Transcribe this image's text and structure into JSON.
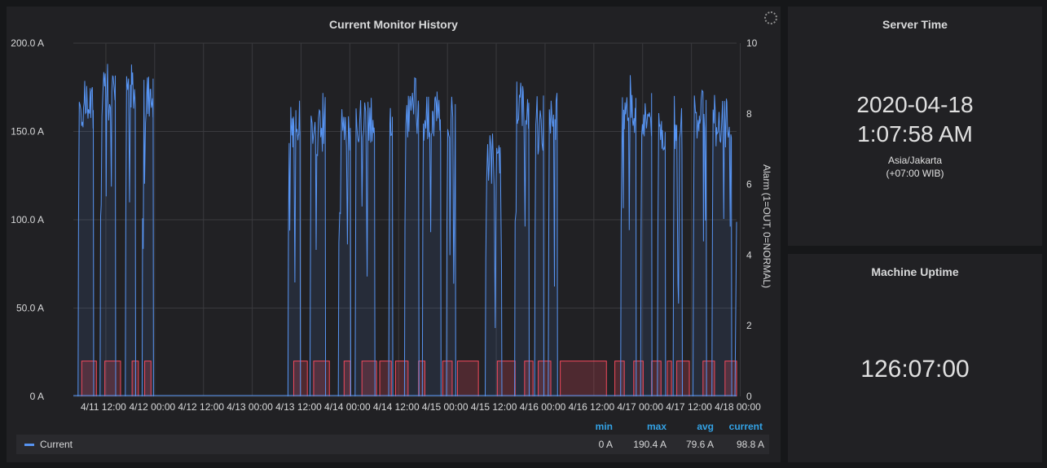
{
  "graph": {
    "title": "Current Monitor History",
    "legend": {
      "headers": {
        "min": "min",
        "max": "max",
        "avg": "avg",
        "current": "current"
      },
      "series_name": "Current",
      "min": "0 A",
      "max": "190.4 A",
      "avg": "79.6 A",
      "current": "98.8 A"
    }
  },
  "server_time": {
    "title": "Server Time",
    "date": "2020-04-18",
    "time": "1:07:58 AM",
    "timezone": "Asia/Jakarta",
    "offset": "(+07:00 WIB)"
  },
  "uptime": {
    "title": "Machine Uptime",
    "value": "126:07:00"
  },
  "colors": {
    "current": "#5794f2",
    "alarm": "#f2495c",
    "accent": "#33a2e5"
  },
  "chart_data": {
    "type": "line",
    "title": "Current Monitor History",
    "y_left": {
      "ticks": [
        "0 A",
        "50.0 A",
        "100.0 A",
        "150.0 A",
        "200.0 A"
      ],
      "range": [
        0,
        200
      ]
    },
    "y_right": {
      "label": "Alarm (1=OUT, 0=NORMAL)",
      "ticks": [
        "0",
        "2",
        "4",
        "6",
        "8",
        "10"
      ],
      "range": [
        0,
        10
      ]
    },
    "x_ticks": [
      "4/11 12:00",
      "4/12 00:00",
      "4/12 12:00",
      "4/13 00:00",
      "4/13 12:00",
      "4/14 00:00",
      "4/14 12:00",
      "4/15 00:00",
      "4/15 12:00",
      "4/16 00:00",
      "4/16 12:00",
      "4/17 00:00",
      "4/17 12:00",
      "4/18 00:00"
    ],
    "grid": true,
    "series": [
      {
        "name": "Current",
        "segments": [
          {
            "start": 0.5,
            "end": 1.9,
            "level": 165
          },
          {
            "start": 2.6,
            "end": 4.0,
            "level": 170
          },
          {
            "start": 5.0,
            "end": 5.9,
            "level": 172
          },
          {
            "start": 6.6,
            "end": 7.6,
            "level": 168
          },
          {
            "start": 20.5,
            "end": 21.6,
            "level": 155
          },
          {
            "start": 22.6,
            "end": 24.0,
            "level": 150
          },
          {
            "start": 25.3,
            "end": 26.4,
            "level": 145
          },
          {
            "start": 26.9,
            "end": 28.7,
            "level": 155
          },
          {
            "start": 30.1,
            "end": 30.4,
            "level": 150
          },
          {
            "start": 31.6,
            "end": 32.9,
            "level": 160
          },
          {
            "start": 33.3,
            "end": 35.0,
            "level": 158
          },
          {
            "start": 35.6,
            "end": 36.4,
            "level": 160
          },
          {
            "start": 39.3,
            "end": 40.8,
            "level": 130
          },
          {
            "start": 42.1,
            "end": 43.4,
            "level": 165
          },
          {
            "start": 44.0,
            "end": 44.8,
            "level": 150
          },
          {
            "start": 45.3,
            "end": 46.1,
            "level": 155
          },
          {
            "start": 52.2,
            "end": 53.6,
            "level": 160
          },
          {
            "start": 54.1,
            "end": 55.1,
            "level": 158
          },
          {
            "start": 55.7,
            "end": 56.4,
            "level": 150
          },
          {
            "start": 57.2,
            "end": 58.0,
            "level": 150
          },
          {
            "start": 59.1,
            "end": 60.3,
            "level": 160
          },
          {
            "start": 60.9,
            "end": 62.7,
            "level": 155
          }
        ],
        "last_value": 98.8
      },
      {
        "name": "Alarm",
        "axis": "right",
        "on_intervals": [
          [
            0.8,
            2.2
          ],
          [
            3.0,
            4.5
          ],
          [
            5.6,
            6.2
          ],
          [
            6.8,
            7.4
          ],
          [
            21.0,
            22.3
          ],
          [
            22.9,
            24.4
          ],
          [
            25.8,
            26.4
          ],
          [
            27.5,
            28.9
          ],
          [
            29.2,
            30.3
          ],
          [
            30.7,
            31.9
          ],
          [
            32.9,
            33.5
          ],
          [
            35.2,
            36.1
          ],
          [
            36.6,
            38.6
          ],
          [
            40.4,
            42.1
          ],
          [
            43.0,
            43.8
          ],
          [
            44.3,
            45.5
          ],
          [
            46.4,
            50.8
          ],
          [
            51.6,
            52.5
          ],
          [
            53.4,
            54.3
          ],
          [
            55.1,
            56.0
          ],
          [
            56.6,
            57.0
          ],
          [
            57.5,
            58.7
          ],
          [
            60.0,
            61.1
          ],
          [
            62.1,
            63.2
          ]
        ]
      }
    ],
    "x_range_hours": [
      0,
      63.2
    ]
  }
}
